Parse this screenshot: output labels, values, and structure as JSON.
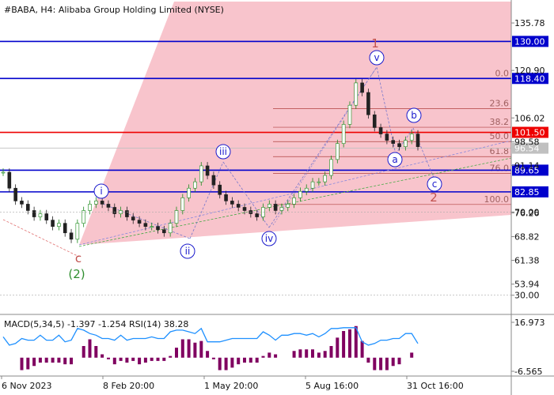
{
  "header": {
    "symbol_label": "#BABA, H4:  Alibaba Group Holding Limited (NYSE)"
  },
  "indicator": {
    "label": "MACD(5,34,5) -1.397 -1.254 RSI(14) 38.28",
    "ticks": [
      "16.973",
      "70.00",
      "30.00",
      "-6.565"
    ],
    "tick_values": [
      16.973,
      70,
      30,
      -6.565
    ]
  },
  "chart_data": {
    "type": "line",
    "title": "#BABA, H4:  Alibaba Group Holding Limited (NYSE)",
    "xlabel": "",
    "ylabel": "",
    "x_ticks": [
      "6 Nov 2023",
      "8 Feb 20:00",
      "1 May 20:00",
      "5 Aug 16:00",
      "31 Oct 16:00"
    ],
    "y_ticks": [
      135.78,
      120.9,
      106.02,
      98.58,
      91.14,
      76.26,
      68.82,
      61.38,
      53.94
    ],
    "ylim": [
      48.9,
      140.5
    ],
    "levels": [
      {
        "label": "130.00",
        "value": 130.0,
        "color": "#0000cc"
      },
      {
        "label": "118.40",
        "value": 118.4,
        "color": "#0000cc"
      },
      {
        "label": "101.50",
        "value": 101.5,
        "color": "#ee0000"
      },
      {
        "label": "96.54",
        "value": 96.54,
        "color": "#c0c0c0"
      },
      {
        "label": "89.65",
        "value": 89.65,
        "color": "#0000cc"
      },
      {
        "label": "82.85",
        "value": 82.85,
        "color": "#0000cc"
      }
    ],
    "fibonacci": [
      {
        "label": "0.0",
        "value": 118.4
      },
      {
        "label": "23.6",
        "value": 108.9
      },
      {
        "label": "38.2",
        "value": 103.1
      },
      {
        "label": "50.0",
        "value": 98.6
      },
      {
        "label": "61.8",
        "value": 93.9
      },
      {
        "label": "76.0",
        "value": 88.6
      },
      {
        "label": "100.0",
        "value": 78.9
      }
    ],
    "wave_labels": [
      {
        "label": "i",
        "style": "blue-circle"
      },
      {
        "label": "ii",
        "style": "blue-circle"
      },
      {
        "label": "iii",
        "style": "blue-circle"
      },
      {
        "label": "iv",
        "style": "blue-circle"
      },
      {
        "label": "v",
        "style": "blue-circle"
      },
      {
        "label": "a",
        "style": "blue-circle"
      },
      {
        "label": "b",
        "style": "blue-circle"
      },
      {
        "label": "c",
        "style": "blue-circle"
      },
      {
        "label": "c",
        "style": "red-text"
      },
      {
        "label": "(2)",
        "style": "green-text"
      },
      {
        "label": "1",
        "style": "red-text"
      },
      {
        "label": "2",
        "style": "red-text"
      }
    ],
    "series": [
      {
        "values": [
          89,
          84,
          80,
          79,
          77,
          75,
          76,
          74,
          72,
          73,
          70,
          68,
          73,
          77,
          79,
          80,
          79,
          78,
          76,
          77,
          75,
          74,
          73,
          72,
          72,
          71,
          70,
          73,
          77,
          81,
          84,
          86,
          91,
          88,
          85,
          82,
          80,
          79,
          78,
          77,
          76,
          75,
          78,
          79,
          77,
          78,
          79,
          81,
          83,
          84,
          86,
          86,
          88,
          93,
          98,
          104,
          110,
          117,
          114,
          107,
          103,
          101,
          99,
          98,
          97,
          99,
          101,
          97
        ]
      }
    ]
  }
}
